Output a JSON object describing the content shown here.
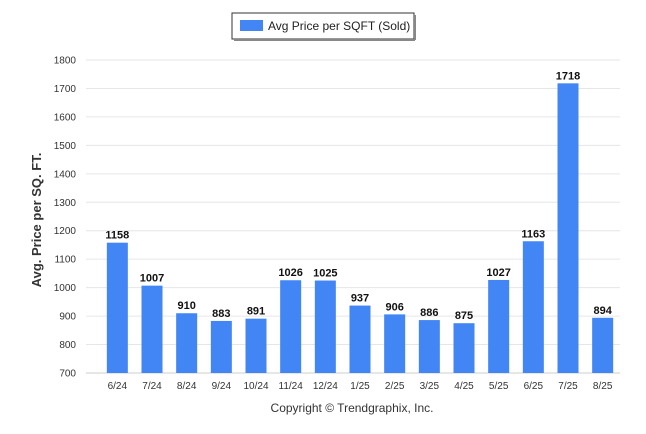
{
  "chart_data": {
    "type": "bar",
    "categories": [
      "6/24",
      "7/24",
      "8/24",
      "9/24",
      "10/24",
      "11/24",
      "12/24",
      "1/25",
      "2/25",
      "3/25",
      "4/25",
      "5/25",
      "6/25",
      "7/25",
      "8/25"
    ],
    "series": [
      {
        "name": "Avg Price per SQFT (Sold)",
        "values": [
          1158,
          1007,
          910,
          883,
          891,
          1026,
          1025,
          937,
          906,
          886,
          875,
          1027,
          1163,
          1718,
          894
        ],
        "color": "#4285f4"
      }
    ],
    "xlabel": "",
    "ylabel": "Avg. Price per SQ. FT.",
    "ylim": [
      700,
      1800
    ],
    "yticks": [
      700,
      800,
      900,
      1000,
      1100,
      1200,
      1300,
      1400,
      1500,
      1600,
      1700,
      1800
    ],
    "grid": true,
    "legend_position": "top-center",
    "data_labels": true
  },
  "footer": {
    "text": "Copyright © Trendgraphix, Inc."
  }
}
